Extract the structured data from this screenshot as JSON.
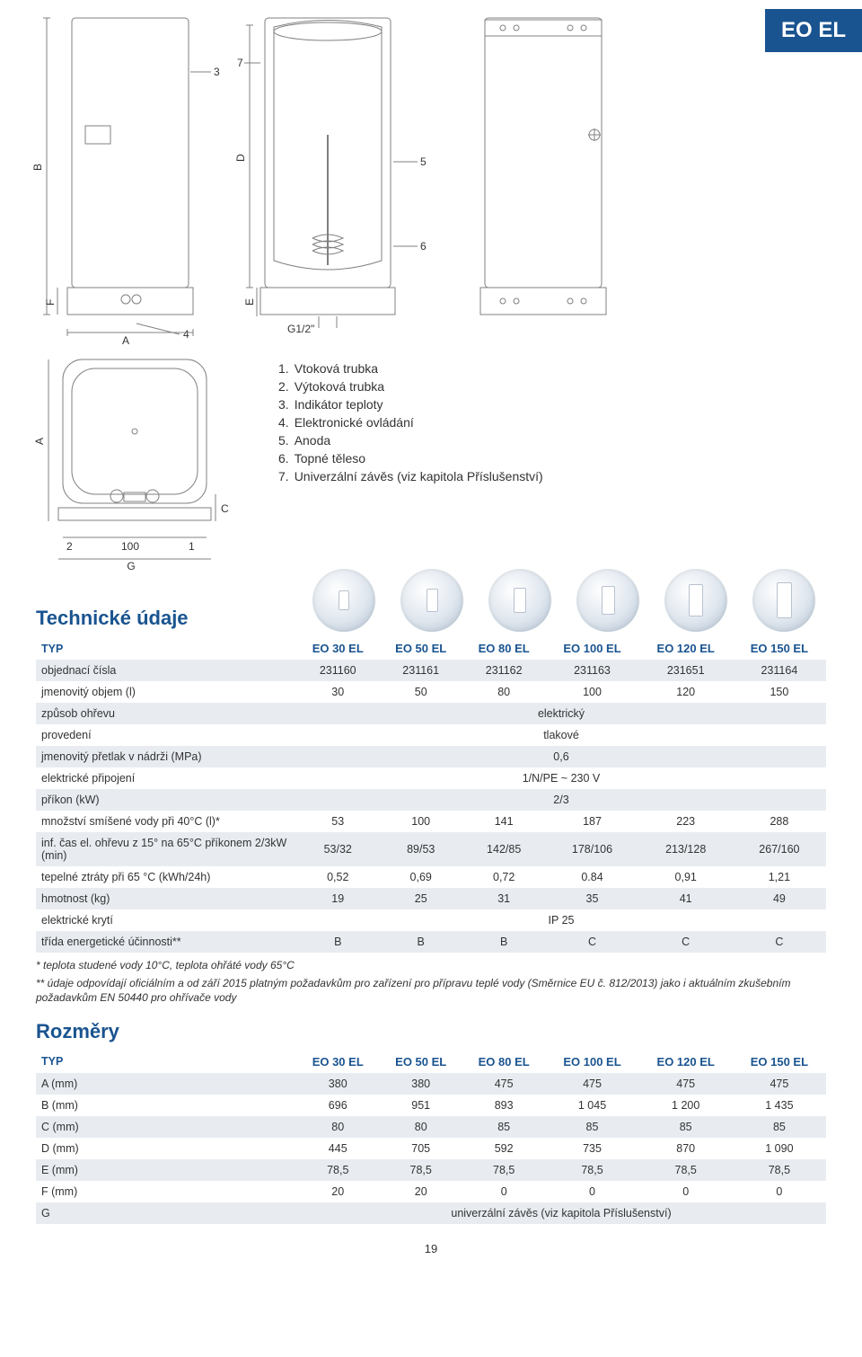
{
  "badge": "EO EL",
  "page_number": "19",
  "diagram_labels": {
    "B": "B",
    "F": "F",
    "A": "A",
    "D": "D",
    "E": "E",
    "G": "G",
    "C": "C",
    "n3": "3",
    "n4": "4",
    "n7": "7",
    "n5": "5",
    "n6": "6",
    "n2": "2",
    "n1": "1",
    "hundred": "100",
    "thread": "G1/2\""
  },
  "legend": [
    {
      "num": "1.",
      "text": "Vtoková trubka"
    },
    {
      "num": "2.",
      "text": "Výtoková trubka"
    },
    {
      "num": "3.",
      "text": "Indikátor teploty"
    },
    {
      "num": "4.",
      "text": "Elektronické ovládání"
    },
    {
      "num": "5.",
      "text": "Anoda"
    },
    {
      "num": "6.",
      "text": "Topné těleso"
    },
    {
      "num": "7.",
      "text": "Univerzální závěs (viz kapitola Příslušenství)"
    }
  ],
  "tech_title": "Technické údaje",
  "dim_title": "Rozměry",
  "footnotes": {
    "f1": "* teplota studené vody 10°C, teplota ohřáté vody 65°C",
    "f2": "** údaje odpovídají oficiálním a od září 2015 platným požadavkům pro zařízení pro přípravu teplé vody (Směrnice EU č. 812/2013) jako i aktuálním zkušebním požadavkům EN 50440 pro ohřívače vody"
  },
  "icon_sizes": [
    {
      "w": 12,
      "h": 22
    },
    {
      "w": 13,
      "h": 26
    },
    {
      "w": 14,
      "h": 28
    },
    {
      "w": 15,
      "h": 32
    },
    {
      "w": 16,
      "h": 36
    },
    {
      "w": 17,
      "h": 40
    }
  ],
  "tech_table": {
    "typ_label": "TYP",
    "columns": [
      "EO 30 EL",
      "EO 50 EL",
      "EO 80 EL",
      "EO 100 EL",
      "EO 120 EL",
      "EO 150 EL"
    ],
    "rows": [
      {
        "label": "objednací čísla",
        "cells": [
          "231160",
          "231161",
          "231162",
          "231163",
          "231651",
          "231164"
        ],
        "stripe": true
      },
      {
        "label": "jmenovitý objem (l)",
        "cells": [
          "30",
          "50",
          "80",
          "100",
          "120",
          "150"
        ],
        "stripe": false
      },
      {
        "label": "způsob ohřevu",
        "span": "elektrický",
        "stripe": true
      },
      {
        "label": "provedení",
        "span": "tlakové",
        "stripe": false
      },
      {
        "label": "jmenovitý přetlak v nádrži (MPa)",
        "span": "0,6",
        "stripe": true
      },
      {
        "label": "elektrické připojení",
        "span": "1/N/PE ~ 230 V",
        "stripe": false
      },
      {
        "label": "příkon (kW)",
        "span": "2/3",
        "stripe": true
      },
      {
        "label": "množství smíšené vody při 40°C (l)*",
        "cells": [
          "53",
          "100",
          "141",
          "187",
          "223",
          "288"
        ],
        "stripe": false
      },
      {
        "label": "inf. čas el. ohřevu z 15° na 65°C příkonem 2/3kW (min)",
        "cells": [
          "53/32",
          "89/53",
          "142/85",
          "178/106",
          "213/128",
          "267/160"
        ],
        "stripe": true
      },
      {
        "label": "tepelné ztráty při 65 °C (kWh/24h)",
        "cells": [
          "0,52",
          "0,69",
          "0,72",
          "0.84",
          "0,91",
          "1,21"
        ],
        "stripe": false
      },
      {
        "label": "hmotnost (kg)",
        "cells": [
          "19",
          "25",
          "31",
          "35",
          "41",
          "49"
        ],
        "stripe": true
      },
      {
        "label": "elektrické krytí",
        "span": "IP 25",
        "stripe": false
      },
      {
        "label": "třída energetické účinnosti**",
        "cells": [
          "B",
          "B",
          "B",
          "C",
          "C",
          "C"
        ],
        "stripe": true
      }
    ]
  },
  "dim_table": {
    "typ_label": "TYP",
    "columns": [
      "EO 30 EL",
      "EO 50 EL",
      "EO 80 EL",
      "EO 100 EL",
      "EO 120 EL",
      "EO 150 EL"
    ],
    "rows": [
      {
        "label": "A (mm)",
        "cells": [
          "380",
          "380",
          "475",
          "475",
          "475",
          "475"
        ],
        "stripe": true
      },
      {
        "label": "B (mm)",
        "cells": [
          "696",
          "951",
          "893",
          "1 045",
          "1 200",
          "1 435"
        ],
        "stripe": false
      },
      {
        "label": "C (mm)",
        "cells": [
          "80",
          "80",
          "85",
          "85",
          "85",
          "85"
        ],
        "stripe": true
      },
      {
        "label": "D (mm)",
        "cells": [
          "445",
          "705",
          "592",
          "735",
          "870",
          "1 090"
        ],
        "stripe": false
      },
      {
        "label": "E (mm)",
        "cells": [
          "78,5",
          "78,5",
          "78,5",
          "78,5",
          "78,5",
          "78,5"
        ],
        "stripe": true
      },
      {
        "label": "F (mm)",
        "cells": [
          "20",
          "20",
          "0",
          "0",
          "0",
          "0"
        ],
        "stripe": false
      },
      {
        "label": "G",
        "span": "univerzální závěs (viz kapitola Příslušenství)",
        "stripe": true
      }
    ]
  },
  "colors": {
    "brand": "#1a5490",
    "stripe": "#e8ecf1",
    "text": "#333333",
    "diagram_stroke": "#808080"
  }
}
